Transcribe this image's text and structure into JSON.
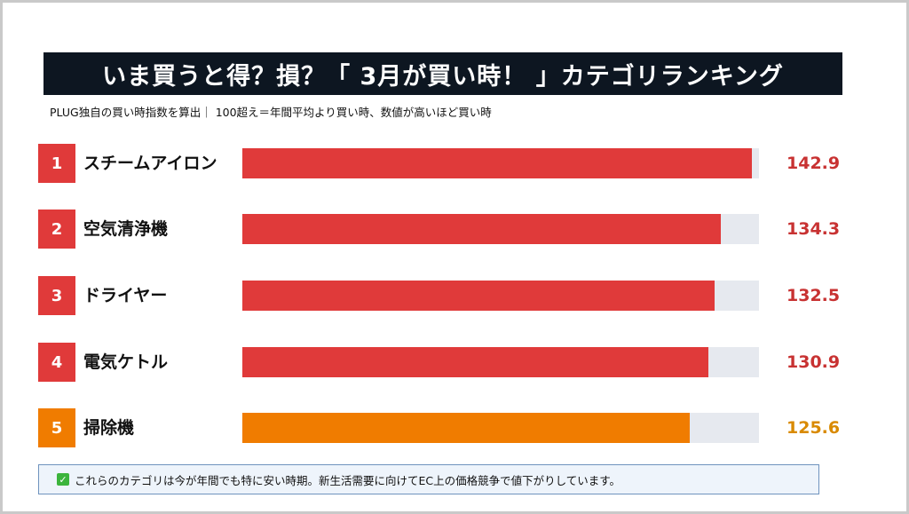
{
  "title": "いま買うと得？損？「 3月が買い時！ 」カテゴリランキング",
  "subtitle": "PLUG独自の買い時指数を算出｜ 100超え＝年間平均より買い時、数値が高いほど買い時",
  "chart_data": {
    "type": "bar",
    "orientation": "horizontal",
    "title": "いま買うと得？損？「 3月が買い時！ 」カテゴリランキング",
    "xlim": [
      0,
      145
    ],
    "items": [
      {
        "rank": "1",
        "label": "スチームアイロン",
        "value": 142.9,
        "value_text": "142.9",
        "color": "#e03a3a"
      },
      {
        "rank": "2",
        "label": "空気清浄機",
        "value": 134.3,
        "value_text": "134.3",
        "color": "#e03a3a"
      },
      {
        "rank": "3",
        "label": "ドライヤー",
        "value": 132.5,
        "value_text": "132.5",
        "color": "#e03a3a"
      },
      {
        "rank": "4",
        "label": "電気ケトル",
        "value": 130.9,
        "value_text": "130.9",
        "color": "#e03a3a"
      },
      {
        "rank": "5",
        "label": "掃除機",
        "value": 125.6,
        "value_text": "125.6",
        "color": "#f07c00"
      }
    ]
  },
  "note": {
    "icon": "check-icon",
    "text": "これらのカテゴリは今が年間でも特に安い時期。新生活需要に向けてEC上の価格競争で値下がりしています。"
  },
  "colors": {
    "title_bg": "#0d1621",
    "track": "#e6e9ef",
    "red": "#e03a3a",
    "orange": "#f07c00",
    "value_red": "#c83232",
    "value_orange": "#d98a00"
  }
}
